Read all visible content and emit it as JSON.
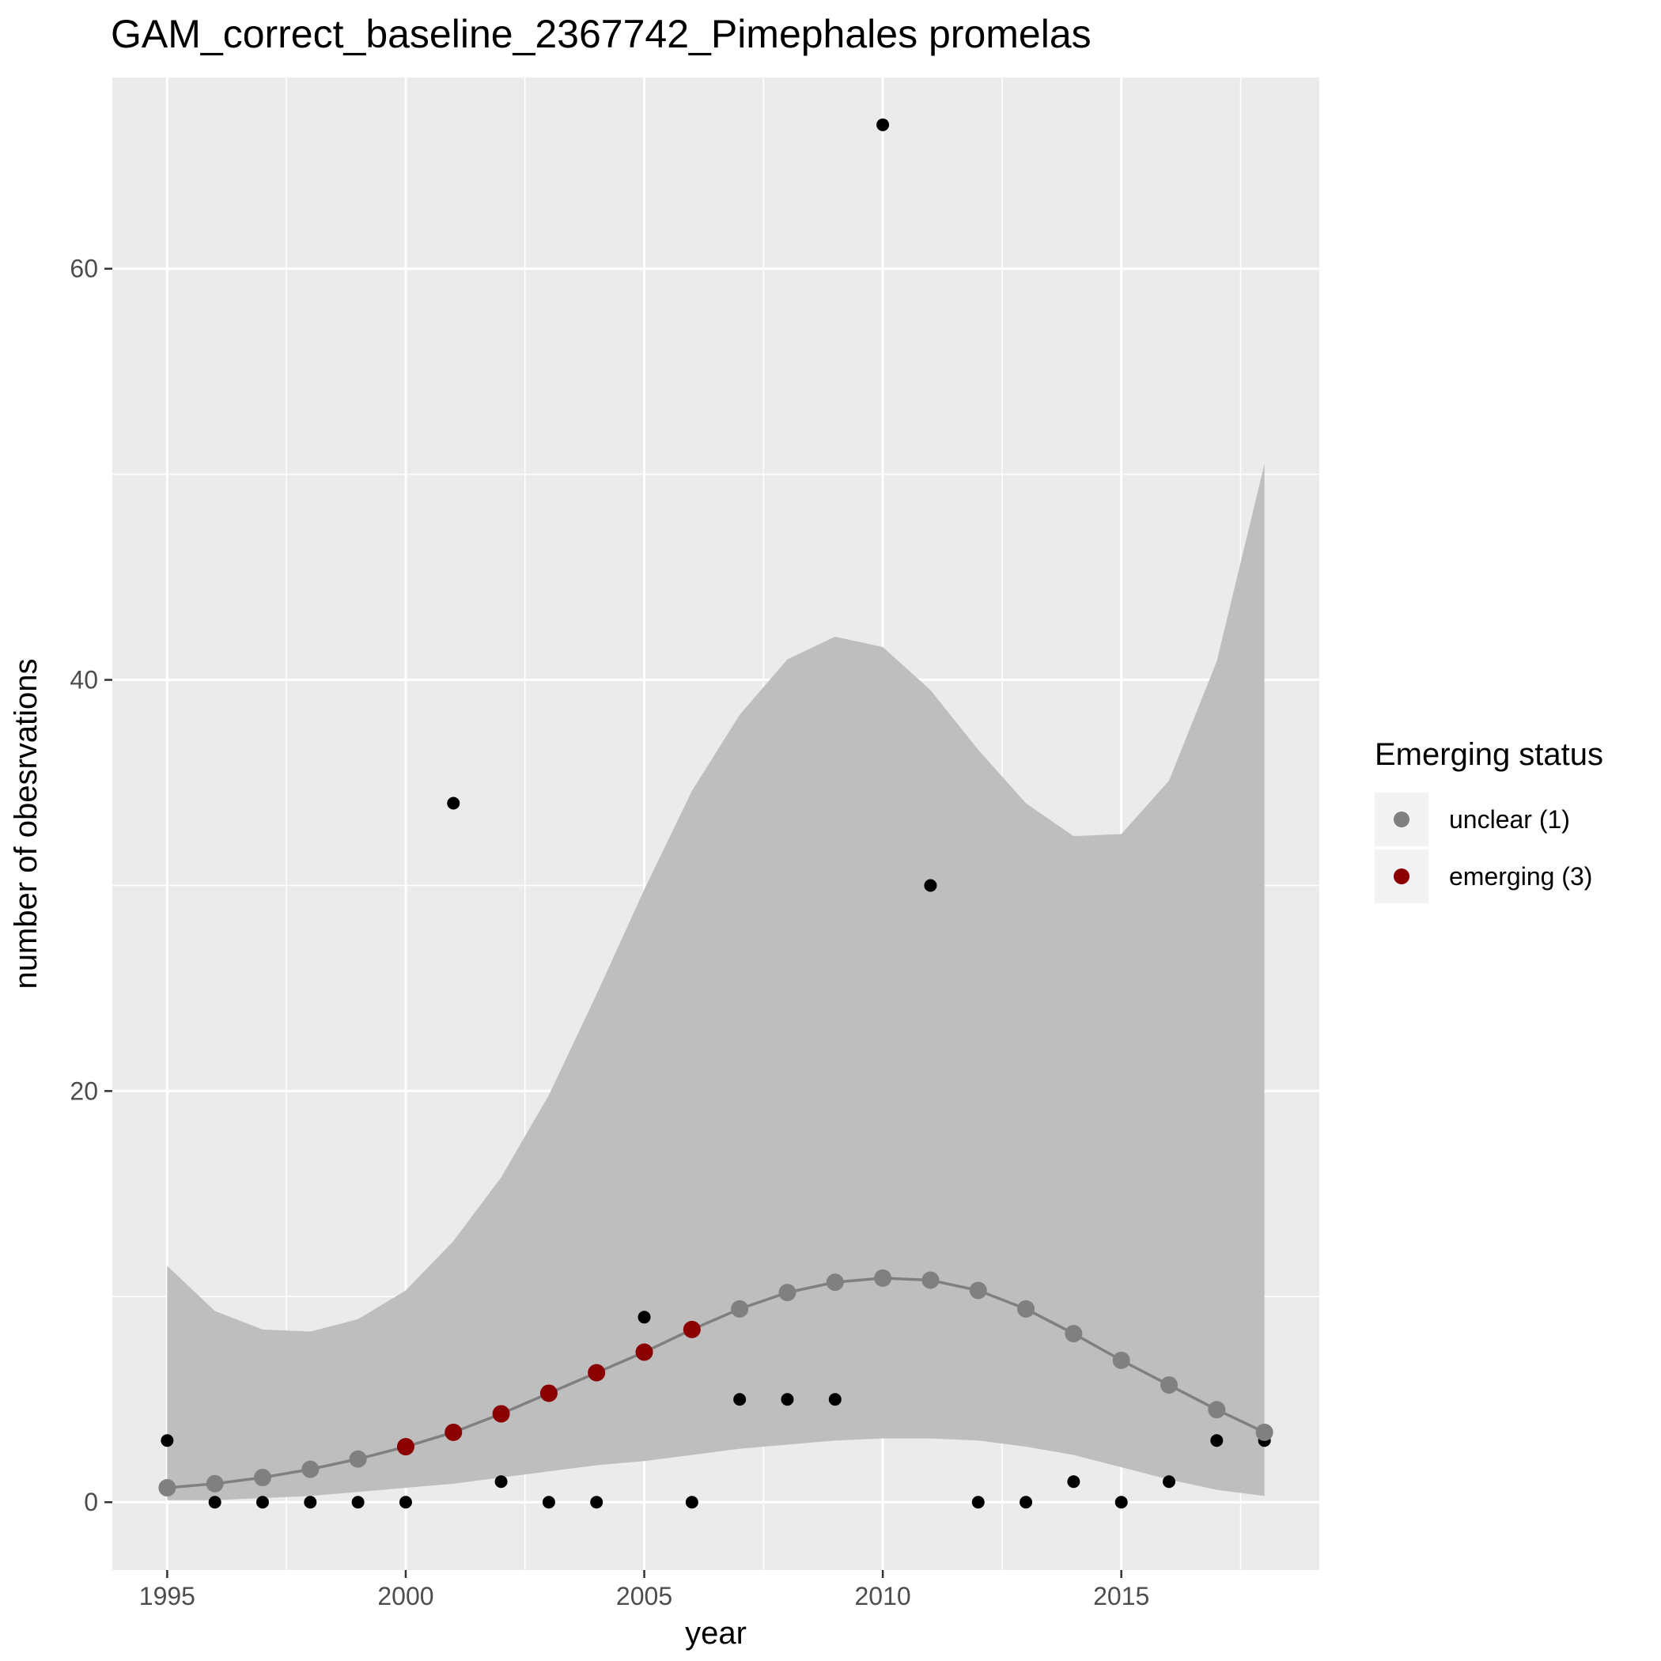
{
  "chart_data": {
    "type": "scatter",
    "title": "GAM_correct_baseline_2367742_Pimephales promelas",
    "xlabel": "year",
    "ylabel": "number of obesrvations",
    "xlim": [
      1993.85,
      2019.15
    ],
    "ylim": [
      -3.3,
      69.3
    ],
    "x_ticks": [
      1995,
      2000,
      2005,
      2010,
      2015
    ],
    "x_tick_labels": [
      "1995",
      "2000",
      "2005",
      "2010",
      "2015"
    ],
    "y_ticks": [
      0,
      20,
      40,
      60
    ],
    "y_tick_labels": [
      "0",
      "20",
      "40",
      "60"
    ],
    "grid": true,
    "legend": {
      "title": "Emerging status",
      "position": "right",
      "entries": [
        {
          "label": "unclear (1)",
          "color": "#808080"
        },
        {
          "label": "emerging (3)",
          "color": "#8b0000"
        }
      ]
    },
    "observed": {
      "x": [
        1995,
        1996,
        1997,
        1998,
        1999,
        2000,
        2001,
        2002,
        2003,
        2004,
        2005,
        2006,
        2007,
        2008,
        2009,
        2010,
        2011,
        2012,
        2013,
        2014,
        2015,
        2016,
        2017,
        2018
      ],
      "y": [
        3,
        0,
        0,
        0,
        0,
        0,
        34,
        1,
        0,
        0,
        9,
        0,
        5,
        5,
        5,
        67,
        30,
        0,
        0,
        1,
        0,
        1,
        3,
        3
      ],
      "color": "#000000"
    },
    "fitted": {
      "x": [
        1995,
        1996,
        1997,
        1998,
        1999,
        2000,
        2001,
        2002,
        2003,
        2004,
        2005,
        2006,
        2007,
        2008,
        2009,
        2010,
        2011,
        2012,
        2013,
        2014,
        2015,
        2016,
        2017,
        2018
      ],
      "y": [
        0.7,
        0.9,
        1.2,
        1.6,
        2.1,
        2.7,
        3.4,
        4.3,
        5.3,
        6.3,
        7.3,
        8.4,
        9.4,
        10.2,
        10.7,
        10.9,
        10.8,
        10.3,
        9.4,
        8.2,
        6.9,
        5.7,
        4.5,
        3.4
      ],
      "status": [
        "unclear",
        "unclear",
        "unclear",
        "unclear",
        "unclear",
        "emerging",
        "emerging",
        "emerging",
        "emerging",
        "emerging",
        "emerging",
        "emerging",
        "unclear",
        "unclear",
        "unclear",
        "unclear",
        "unclear",
        "unclear",
        "unclear",
        "unclear",
        "unclear",
        "unclear",
        "unclear",
        "unclear"
      ],
      "line_color": "#808080"
    },
    "ci_band": {
      "x": [
        1995,
        1996,
        1997,
        1998,
        1999,
        2000,
        2001,
        2002,
        2003,
        2004,
        2005,
        2006,
        2007,
        2008,
        2009,
        2010,
        2011,
        2012,
        2013,
        2014,
        2015,
        2016,
        2017,
        2018
      ],
      "upper": [
        11.5,
        9.3,
        8.4,
        8.3,
        8.9,
        10.3,
        12.7,
        15.8,
        19.8,
        24.7,
        29.8,
        34.6,
        38.3,
        41.0,
        42.1,
        41.6,
        39.5,
        36.6,
        34.0,
        32.4,
        32.5,
        35.1,
        40.9,
        50.5
      ],
      "lower": [
        0.1,
        0.1,
        0.2,
        0.3,
        0.5,
        0.7,
        0.9,
        1.2,
        1.5,
        1.8,
        2.0,
        2.3,
        2.6,
        2.8,
        3.0,
        3.1,
        3.1,
        3.0,
        2.7,
        2.3,
        1.7,
        1.1,
        0.6,
        0.3
      ],
      "color": "#bebebe"
    },
    "panel_color": "#ebebeb",
    "grid_color": "#ffffff"
  }
}
